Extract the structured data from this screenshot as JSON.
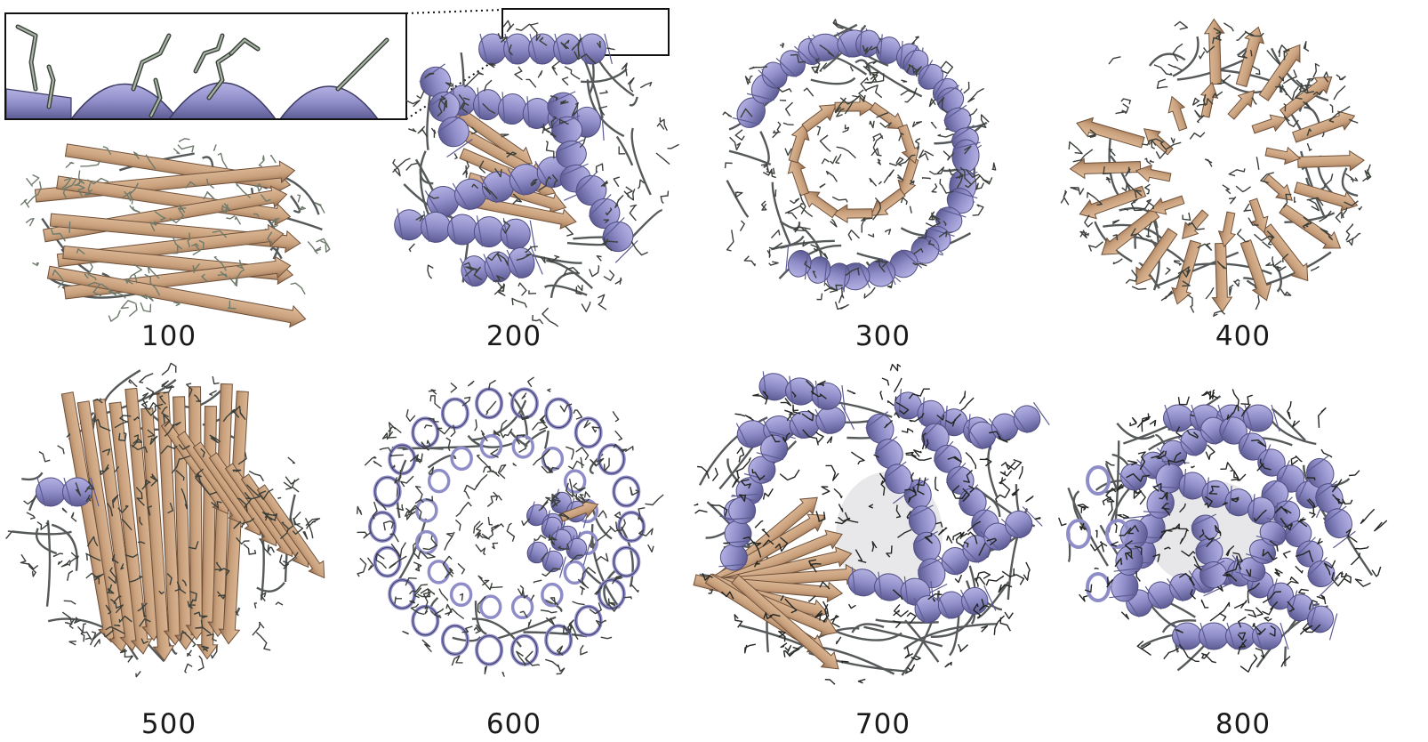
{
  "colors": {
    "helix": "#8f8dc8",
    "helix_dark": "#6b69a6",
    "strand": "#c9a07c",
    "strand_dark": "#8e6a4d",
    "sidechain": "#3b3f3a",
    "sidechain_light": "#6e7a6c",
    "frame": "#111111"
  },
  "panels": [
    {
      "label": "100",
      "fold": "beta-sandwich",
      "icon": "beta-sheet-protein-icon"
    },
    {
      "label": "200",
      "fold": "alpha-beta",
      "icon": "alpha-beta-protein-icon"
    },
    {
      "label": "300",
      "fold": "ring-mixed",
      "icon": "mixed-ring-protein-icon"
    },
    {
      "label": "400",
      "fold": "beta-ring",
      "icon": "beta-ring-protein-icon"
    },
    {
      "label": "500",
      "fold": "beta-solenoid",
      "icon": "beta-solenoid-protein-icon"
    },
    {
      "label": "600",
      "fold": "helical-ring",
      "icon": "helical-ring-protein-icon"
    },
    {
      "label": "700",
      "fold": "helix-bundle-with-sheet",
      "icon": "multi-domain-protein-icon"
    },
    {
      "label": "800",
      "fold": "helical-bundle",
      "icon": "helical-bundle-protein-icon"
    }
  ],
  "inset": {
    "icon": "helix-zoom-inset-icon"
  }
}
